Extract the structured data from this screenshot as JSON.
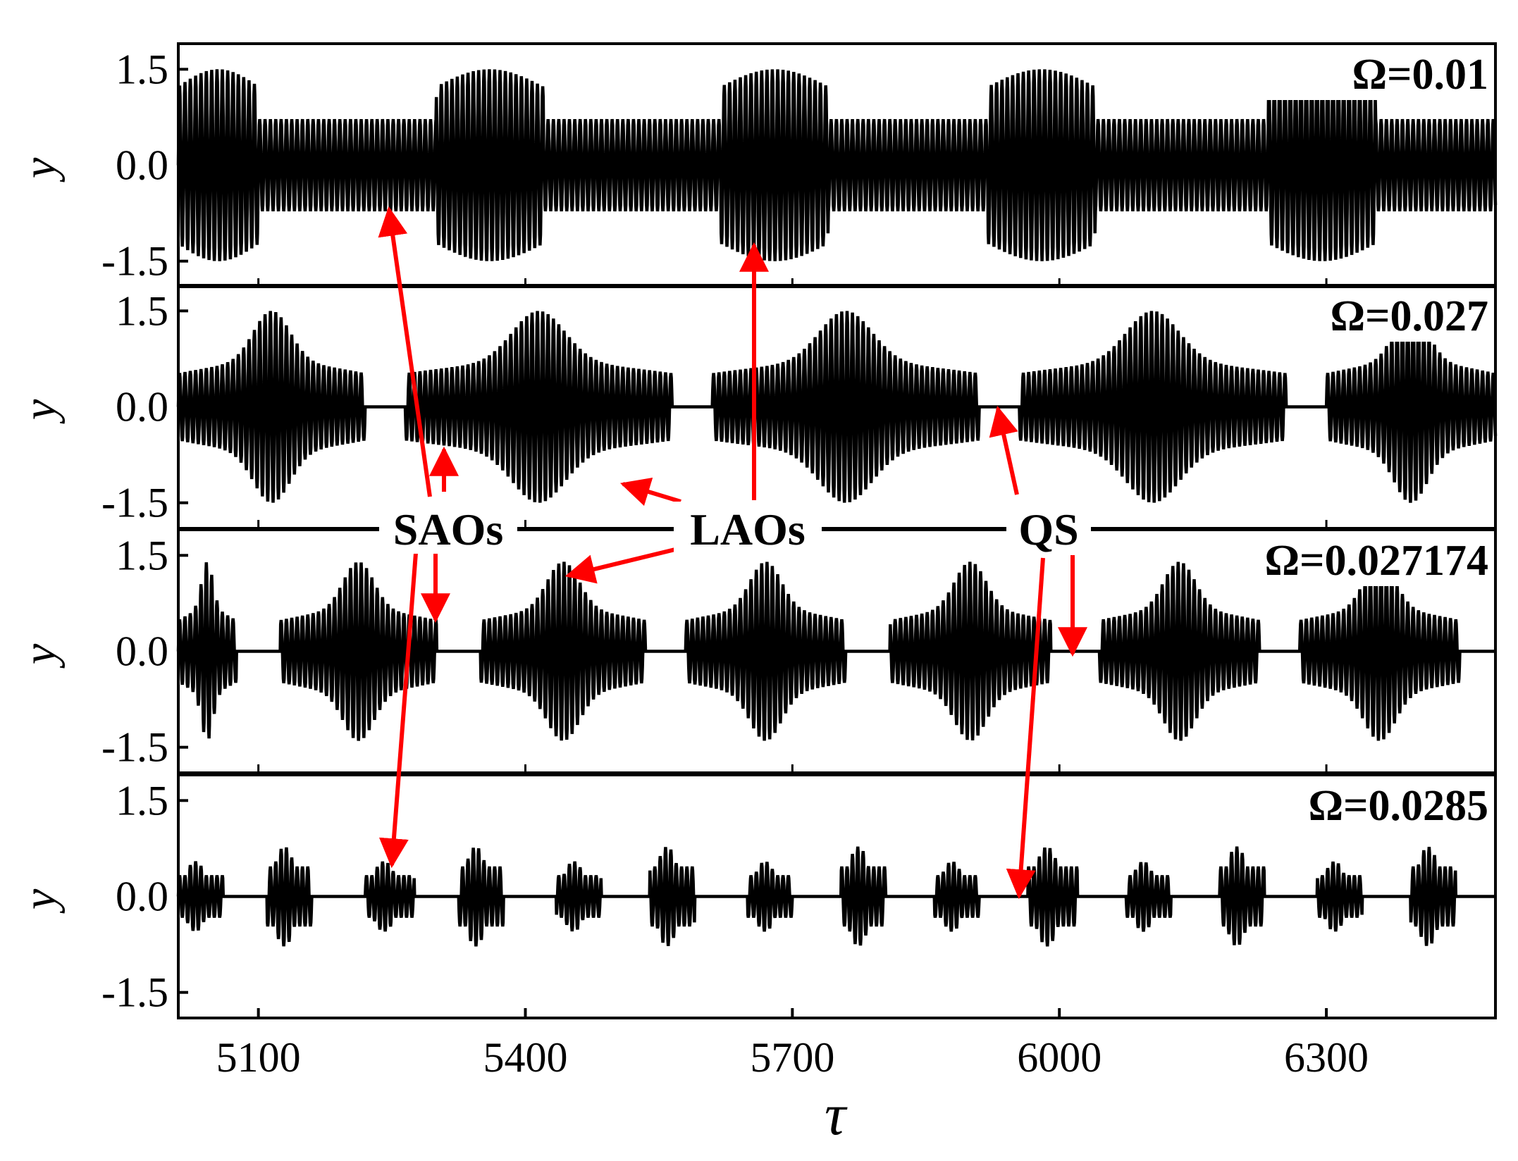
{
  "chart_data": [
    {
      "type": "line",
      "panel_label": "Ω=0.01",
      "ylabel": "y",
      "xlim": [
        5010,
        6490
      ],
      "ylim": [
        -1.9,
        1.9
      ],
      "y_ticks": [
        "1.5",
        "0.0",
        "-1.5"
      ],
      "y_tick_values": [
        1.5,
        0.0,
        -1.5
      ],
      "signal": {
        "description_values": {
          "large_amplitude": 1.5,
          "small_amplitude": 0.72,
          "quiescent_amplitude": 0
        },
        "large_oscillation_spans": [
          [
            5010,
            5100
          ],
          [
            5300,
            5420
          ],
          [
            5620,
            5740
          ],
          [
            5920,
            6040
          ],
          [
            6235,
            6355
          ]
        ],
        "period": 6
      }
    },
    {
      "type": "line",
      "panel_label": "Ω=0.027",
      "ylabel": "y",
      "xlim": [
        5010,
        6490
      ],
      "ylim": [
        -1.9,
        1.9
      ],
      "y_ticks": [
        "1.5",
        "0.0",
        "-1.5"
      ],
      "y_tick_values": [
        1.5,
        0.0,
        -1.5
      ],
      "signal": {
        "burst_spans": [
          [
            5010,
            5220
          ],
          [
            5265,
            5565
          ],
          [
            5610,
            5910
          ],
          [
            5955,
            6255
          ],
          [
            6300,
            6490
          ]
        ],
        "peak_amplitude": 1.5,
        "small_amplitude": 0.7,
        "period": 6
      }
    },
    {
      "type": "line",
      "panel_label": "Ω=0.027174",
      "ylabel": "y",
      "xlim": [
        5010,
        6490
      ],
      "ylim": [
        -1.9,
        1.9
      ],
      "y_ticks": [
        "1.5",
        "0.0",
        "-1.5"
      ],
      "y_tick_values": [
        1.5,
        0.0,
        -1.5
      ],
      "signal": {
        "burst_spans": [
          [
            5010,
            5075
          ],
          [
            5125,
            5300
          ],
          [
            5350,
            5535
          ],
          [
            5580,
            5760
          ],
          [
            5810,
            5990
          ],
          [
            6045,
            6225
          ],
          [
            6270,
            6450
          ]
        ],
        "peak_amplitude": 1.4,
        "small_amplitude": 0.65,
        "period": 6
      }
    },
    {
      "type": "line",
      "panel_label": "Ω=0.0285",
      "ylabel": "y",
      "xlabel": "τ",
      "xlim": [
        5010,
        6490
      ],
      "ylim": [
        -1.9,
        1.9
      ],
      "x_ticks": [
        "5100",
        "5400",
        "5700",
        "6000",
        "6300"
      ],
      "x_tick_values": [
        5100,
        5400,
        5700,
        6000,
        6300
      ],
      "y_ticks": [
        "1.5",
        "0.0",
        "-1.5"
      ],
      "y_tick_values": [
        1.5,
        0.0,
        -1.5
      ],
      "signal": {
        "burst_spans": [
          [
            5010,
            5060
          ],
          [
            5110,
            5160
          ],
          [
            5220,
            5275
          ],
          [
            5325,
            5375
          ],
          [
            5435,
            5485
          ],
          [
            5540,
            5590
          ],
          [
            5650,
            5700
          ],
          [
            5755,
            5805
          ],
          [
            5860,
            5910
          ],
          [
            5965,
            6020
          ],
          [
            6075,
            6125
          ],
          [
            6180,
            6230
          ],
          [
            6290,
            6340
          ],
          [
            6395,
            6445
          ]
        ],
        "amplitude_small": 0.55,
        "amplitude_large": 0.78,
        "period": 6
      }
    }
  ],
  "annotations": {
    "saos": "SAOs",
    "laos": "LAOs",
    "qs": "QS"
  },
  "colors": {
    "signal": "#000000",
    "arrow": "#ff0000",
    "frame": "#000000"
  }
}
